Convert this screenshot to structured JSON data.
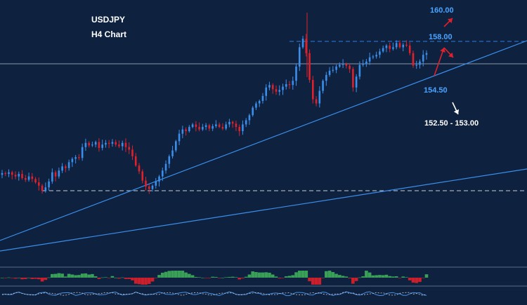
{
  "chart_data": {
    "type": "candlestick",
    "title": "USDJPY",
    "subtitle": "H4 Chart",
    "symbol": "USDJPY",
    "timeframe": "H4",
    "y_axis_visible": false,
    "x_axis_visible": false,
    "grid": false,
    "price_levels": [
      {
        "label": "160.00",
        "value": 160.0,
        "color": "#2f7fe0"
      },
      {
        "label": "158.00",
        "value": 158.0,
        "color": "#2f7fe0"
      },
      {
        "label": "154.50",
        "value": 154.5,
        "color": "#2f7fe0"
      },
      {
        "label": "152.50 - 153.00",
        "value": 152.75,
        "color": "#ffffff"
      }
    ],
    "annotations": [
      {
        "type": "arrow",
        "direction": "up",
        "color": "#e0202a",
        "target": "160.00"
      },
      {
        "type": "arrow",
        "direction": "down",
        "color": "#e0202a",
        "target": "158.00"
      },
      {
        "type": "arrow",
        "direction": "up",
        "color": "#e0202a",
        "target": "154.50"
      },
      {
        "type": "arrow",
        "direction": "down",
        "color": "#ffffff",
        "target": "152.50 - 153.00"
      }
    ],
    "lines": [
      {
        "kind": "horizontal-dashed",
        "level": 158.0,
        "color": "#2f7fe0"
      },
      {
        "kind": "horizontal-solid",
        "color": "#8a96a8"
      },
      {
        "kind": "horizontal-dashed",
        "level": 140.0,
        "color": "#c8ccd4"
      },
      {
        "kind": "trendline",
        "color": "#3b8eea"
      },
      {
        "kind": "trendline",
        "color": "#3b8eea"
      }
    ],
    "series": [
      {
        "name": "price",
        "values": [
          142.3,
          142.2,
          142.4,
          142.1,
          141.9,
          142.2,
          141.7,
          141.5,
          141.9,
          141.6,
          141.2,
          140.8,
          140.2,
          140.6,
          141.3,
          142.4,
          141.9,
          142.6,
          143.1,
          142.9,
          143.6,
          144.0,
          144.2,
          144.1,
          145.4,
          145.9,
          145.6,
          145.7,
          146.0,
          145.3,
          145.7,
          145.9,
          145.8,
          146.0,
          145.7,
          145.5,
          145.9,
          145.4,
          145.1,
          144.3,
          143.2,
          142.5,
          141.4,
          140.7,
          140.4,
          140.8,
          141.3,
          141.9,
          142.6,
          143.4,
          144.3,
          145.0,
          146.1,
          147.0,
          147.5,
          147.3,
          147.8,
          148.1,
          147.8,
          147.5,
          147.8,
          148.0,
          147.6,
          147.9,
          148.1,
          147.8,
          147.6,
          148.1,
          148.4,
          148.2,
          147.8,
          147.3,
          148.1,
          148.6,
          149.2,
          150.1,
          150.6,
          150.9,
          151.5,
          152.5,
          152.8,
          152.3,
          152.0,
          152.2,
          152.6,
          152.9,
          152.8,
          153.3,
          155.0,
          157.3,
          158.3,
          156.6,
          153.4,
          151.1,
          150.6,
          152.1,
          153.3,
          154.0,
          154.5,
          154.6,
          155.0,
          155.2,
          155.3,
          155.1,
          154.7,
          152.5,
          153.8,
          155.2,
          155.3,
          155.6,
          156.1,
          156.2,
          156.4,
          156.8,
          157.2,
          157.5,
          157.1,
          157.3,
          157.8,
          157.3,
          157.6,
          157.5,
          156.6,
          155.1,
          155.2,
          155.6,
          156.4,
          156.6
        ]
      }
    ],
    "indicators": [
      {
        "name": "histogram",
        "colors": [
          "#3fae5a",
          "#e0202a"
        ]
      },
      {
        "name": "oscillator",
        "colors": [
          "#4a90e2",
          "#c8ccd4"
        ]
      }
    ]
  }
}
